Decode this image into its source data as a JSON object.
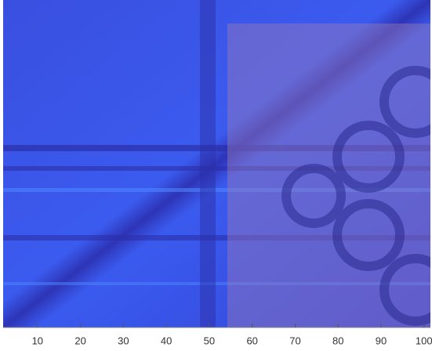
{
  "chart_data": {
    "type": "image",
    "xlim": [
      2,
      101.5
    ],
    "xticks": [
      10,
      20,
      30,
      40,
      50,
      60,
      70,
      80,
      90,
      100
    ]
  }
}
